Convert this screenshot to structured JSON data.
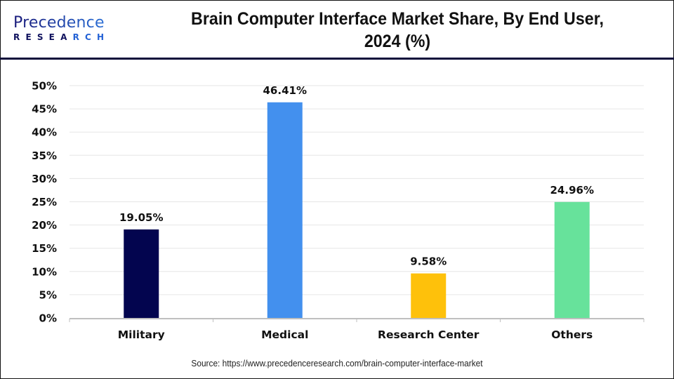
{
  "logo": {
    "top": "Precedence",
    "bottom_a": "RESEA",
    "bottom_b": "RCH"
  },
  "colors": {
    "header_rule": "#0b0b3b",
    "gridline": "#e6e6e6",
    "axis": "#bfbfbf"
  },
  "chart_data": {
    "type": "bar",
    "title": "Brain Computer Interface Market Share, By End User, 2024 (%)",
    "title_lines": [
      "Brain Computer Interface Market Share, By End User,",
      "2024 (%)"
    ],
    "xlabel": "",
    "ylabel": "",
    "categories": [
      "Military",
      "Medical",
      "Research Center",
      "Others"
    ],
    "values": [
      19.05,
      46.41,
      9.58,
      24.96
    ],
    "data_labels": [
      "19.05%",
      "46.41%",
      "9.58%",
      "24.96%"
    ],
    "bar_colors": [
      "#03054f",
      "#4390ee",
      "#fec10b",
      "#67e29b"
    ],
    "ylim": [
      0,
      50
    ],
    "yticks": [
      0,
      5,
      10,
      15,
      20,
      25,
      30,
      35,
      40,
      45,
      50
    ],
    "ytick_labels": [
      "0%",
      "5%",
      "10%",
      "15%",
      "20%",
      "25%",
      "30%",
      "35%",
      "40%",
      "45%",
      "50%"
    ],
    "grid": true,
    "legend": "none"
  },
  "source": "Source: https://www.precedenceresearch.com/brain-computer-interface-market"
}
